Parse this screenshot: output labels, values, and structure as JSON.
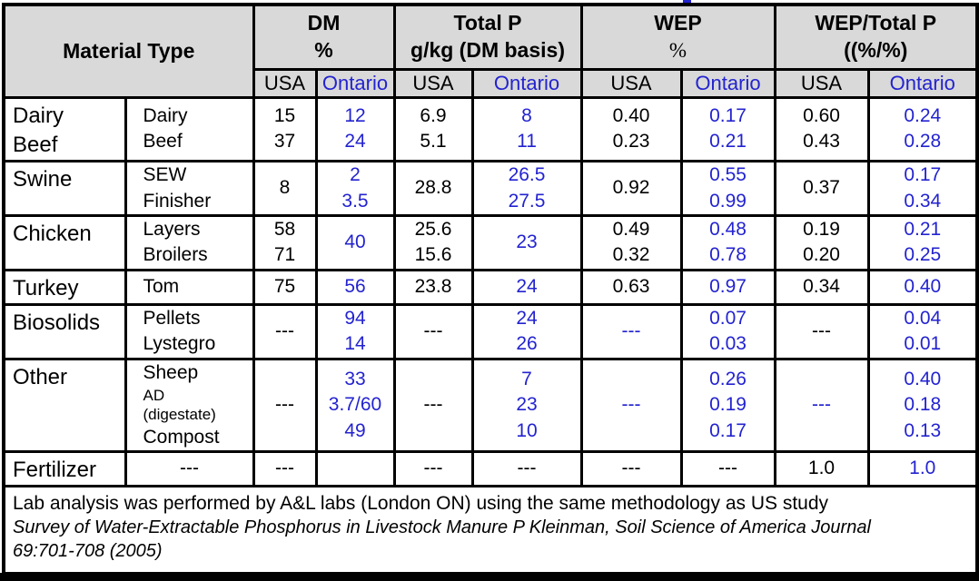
{
  "colors": {
    "ontario_blue": "#2323d0",
    "header_bg": "#d9d9d9",
    "border": "#000000"
  },
  "header": {
    "material_type": "Material Type",
    "usa_label": "USA",
    "ontario_label": "Ontario",
    "groups": [
      {
        "line1": "DM",
        "line2": "%"
      },
      {
        "line1": "Total P",
        "line2": "g/kg (DM basis)"
      },
      {
        "line1": "WEP",
        "line2": "%"
      },
      {
        "line1": "WEP/Total P",
        "line2": "((%/%)"
      }
    ]
  },
  "rows": [
    {
      "name": "dairy-beef",
      "cells": {
        "group": {
          "lines": [
            "Dairy",
            "Beef"
          ],
          "color": "black"
        },
        "subtype": {
          "lines": [
            "Dairy",
            "Beef"
          ],
          "color": "black"
        },
        "dm_usa": {
          "lines": [
            "15",
            "37"
          ],
          "color": "black"
        },
        "dm_on": {
          "lines": [
            "12",
            "24"
          ],
          "color": "blue"
        },
        "tp_usa": {
          "lines": [
            "6.9",
            "5.1"
          ],
          "color": "black"
        },
        "tp_on": {
          "lines": [
            "8",
            "11"
          ],
          "color": "blue"
        },
        "wep_usa": {
          "lines": [
            "0.40",
            "0.23"
          ],
          "color": "black"
        },
        "wep_on": {
          "lines": [
            "0.17",
            "0.21"
          ],
          "color": "blue"
        },
        "ratio_usa": {
          "lines": [
            "0.60",
            "0.43"
          ],
          "color": "black"
        },
        "ratio_on": {
          "lines": [
            "0.24",
            "0.28"
          ],
          "color": "blue"
        }
      }
    },
    {
      "name": "swine",
      "cells": {
        "group": {
          "lines": [
            "Swine"
          ],
          "color": "black"
        },
        "subtype": {
          "lines": [
            "SEW",
            "Finisher"
          ],
          "color": "black"
        },
        "dm_usa": {
          "lines": [
            "8"
          ],
          "color": "black"
        },
        "dm_on": {
          "lines": [
            "2",
            "3.5"
          ],
          "color": "blue"
        },
        "tp_usa": {
          "lines": [
            "28.8"
          ],
          "color": "black"
        },
        "tp_on": {
          "lines": [
            "26.5",
            "27.5"
          ],
          "color": "blue"
        },
        "wep_usa": {
          "lines": [
            "0.92"
          ],
          "color": "black"
        },
        "wep_on": {
          "lines": [
            "0.55",
            "0.99"
          ],
          "color": "blue"
        },
        "ratio_usa": {
          "lines": [
            "0.37"
          ],
          "color": "black"
        },
        "ratio_on": {
          "lines": [
            "0.17",
            "0.34"
          ],
          "color": "blue"
        }
      }
    },
    {
      "name": "chicken",
      "cells": {
        "group": {
          "lines": [
            "Chicken"
          ],
          "color": "black"
        },
        "subtype": {
          "lines": [
            "Layers",
            "Broilers"
          ],
          "color": "black"
        },
        "dm_usa": {
          "lines": [
            "58",
            "71"
          ],
          "color": "black"
        },
        "dm_on": {
          "lines": [
            "40"
          ],
          "color": "blue"
        },
        "tp_usa": {
          "lines": [
            "25.6",
            "15.6"
          ],
          "color": "black"
        },
        "tp_on": {
          "lines": [
            "23"
          ],
          "color": "blue"
        },
        "wep_usa": {
          "lines": [
            "0.49",
            "0.32"
          ],
          "color": "black"
        },
        "wep_on": {
          "lines": [
            "0.48",
            "0.78"
          ],
          "color": "blue"
        },
        "ratio_usa": {
          "lines": [
            "0.19",
            "0.20"
          ],
          "color": "black"
        },
        "ratio_on": {
          "lines": [
            "0.21",
            "0.25"
          ],
          "color": "blue"
        }
      }
    },
    {
      "name": "turkey",
      "cells": {
        "group": {
          "lines": [
            "Turkey"
          ],
          "color": "black"
        },
        "subtype": {
          "lines": [
            "Tom"
          ],
          "color": "black"
        },
        "dm_usa": {
          "lines": [
            "75"
          ],
          "color": "black"
        },
        "dm_on": {
          "lines": [
            "56"
          ],
          "color": "blue"
        },
        "tp_usa": {
          "lines": [
            "23.8"
          ],
          "color": "black"
        },
        "tp_on": {
          "lines": [
            "24"
          ],
          "color": "blue"
        },
        "wep_usa": {
          "lines": [
            "0.63"
          ],
          "color": "black"
        },
        "wep_on": {
          "lines": [
            "0.97"
          ],
          "color": "blue"
        },
        "ratio_usa": {
          "lines": [
            "0.34"
          ],
          "color": "black"
        },
        "ratio_on": {
          "lines": [
            "0.40"
          ],
          "color": "blue"
        }
      }
    },
    {
      "name": "biosolids",
      "cells": {
        "group": {
          "lines": [
            "Biosolids"
          ],
          "color": "black"
        },
        "subtype": {
          "lines": [
            "Pellets",
            "Lystegro"
          ],
          "color": "black"
        },
        "dm_usa": {
          "lines": [
            "---"
          ],
          "color": "black"
        },
        "dm_on": {
          "lines": [
            "94",
            "14"
          ],
          "color": "blue"
        },
        "tp_usa": {
          "lines": [
            "---"
          ],
          "color": "black"
        },
        "tp_on": {
          "lines": [
            "24",
            "26"
          ],
          "color": "blue"
        },
        "wep_usa": {
          "lines": [
            "---"
          ],
          "color": "blue"
        },
        "wep_on": {
          "lines": [
            "0.07",
            "0.03"
          ],
          "color": "blue"
        },
        "ratio_usa": {
          "lines": [
            "---"
          ],
          "color": "black"
        },
        "ratio_on": {
          "lines": [
            "0.04",
            "0.01"
          ],
          "color": "blue"
        }
      }
    },
    {
      "name": "other",
      "cells": {
        "group": {
          "lines": [
            "Other"
          ],
          "color": "black"
        },
        "subtype": {
          "lines": [
            "Sheep",
            {
              "text": "AD",
              "small": true
            },
            {
              "text": "(digestate)",
              "small": true
            },
            "Compost"
          ],
          "color": "black"
        },
        "dm_usa": {
          "lines": [
            "---"
          ],
          "color": "black"
        },
        "dm_on": {
          "lines": [
            "33",
            "3.7/60",
            "49"
          ],
          "color": "blue"
        },
        "tp_usa": {
          "lines": [
            "---"
          ],
          "color": "black"
        },
        "tp_on": {
          "lines": [
            "7",
            "23",
            "10"
          ],
          "color": "blue"
        },
        "wep_usa": {
          "lines": [
            "---"
          ],
          "color": "blue"
        },
        "wep_on": {
          "lines": [
            "0.26",
            "0.19",
            "0.17"
          ],
          "color": "blue"
        },
        "ratio_usa": {
          "lines": [
            "---"
          ],
          "color": "blue"
        },
        "ratio_on": {
          "lines": [
            "0.40",
            "0.18",
            "0.13"
          ],
          "color": "blue"
        }
      }
    },
    {
      "name": "fertilizer",
      "cells": {
        "group": {
          "lines": [
            "Fertilizer"
          ],
          "color": "black"
        },
        "subtype": {
          "lines": [
            "---"
          ],
          "color": "black",
          "center": true
        },
        "dm_usa": {
          "lines": [
            "---"
          ],
          "color": "black"
        },
        "dm_on": {
          "lines": [],
          "color": "blue"
        },
        "tp_usa": {
          "lines": [
            "---"
          ],
          "color": "black"
        },
        "tp_on": {
          "lines": [
            "---"
          ],
          "color": "black"
        },
        "wep_usa": {
          "lines": [
            "---"
          ],
          "color": "black"
        },
        "wep_on": {
          "lines": [
            "---"
          ],
          "color": "black"
        },
        "ratio_usa": {
          "lines": [
            "1.0"
          ],
          "color": "black"
        },
        "ratio_on": {
          "lines": [
            "1.0"
          ],
          "color": "blue"
        }
      }
    }
  ],
  "footer": {
    "line1": "Lab analysis was performed by A&L labs (London ON) using the same methodology as US study",
    "line2": "Survey of Water-Extractable Phosphorus in Livestock Manure P Kleinman, Soil Science of America Journal",
    "line3": "69:701-708 (2005)"
  }
}
